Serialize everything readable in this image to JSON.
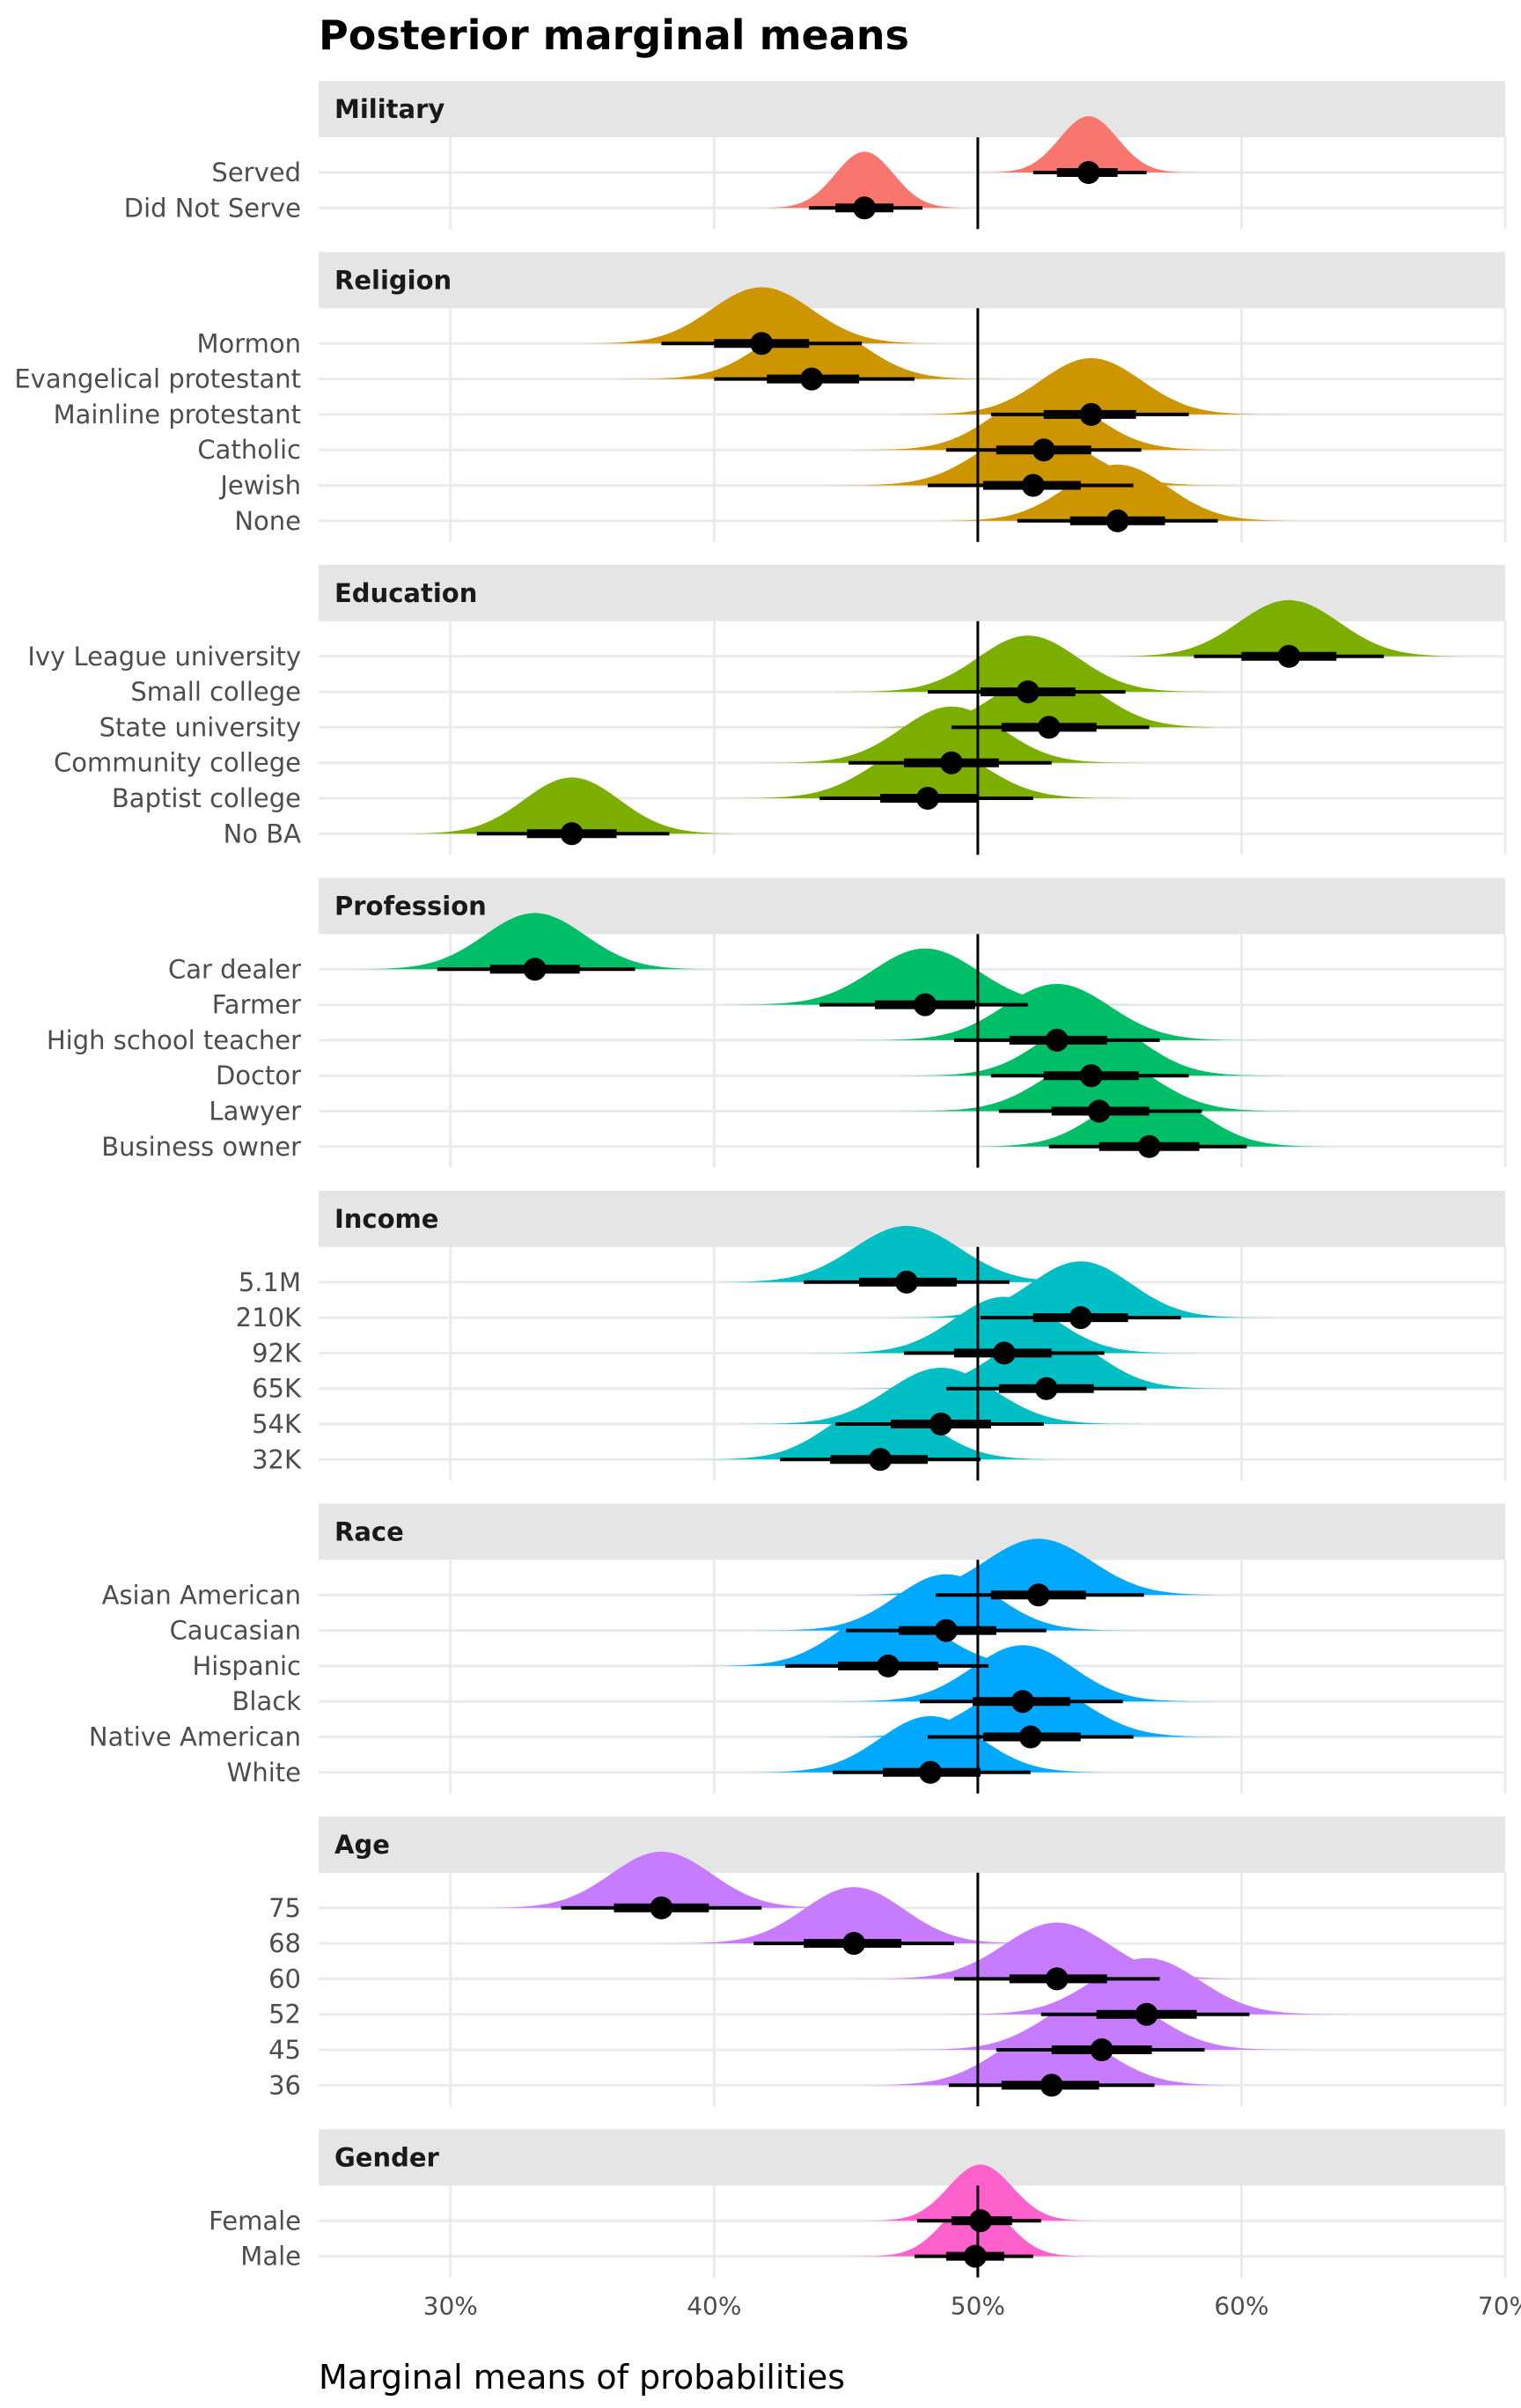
{
  "chart_data": {
    "type": "halfeye",
    "title": "Posterior marginal means",
    "xlabel": "Marginal means of probabilities",
    "ylabel": "",
    "xlim": [
      0.25,
      0.7
    ],
    "x_ticks": [
      0.3,
      0.4,
      0.5,
      0.6,
      0.7
    ],
    "x_tick_labels": [
      "30%",
      "40%",
      "50%",
      "60%",
      "70%"
    ],
    "reference_line": 0.5,
    "grid": true,
    "legend": "none",
    "facets": [
      {
        "name": "Military",
        "color": "#F8766D",
        "levels": [
          {
            "label": "Served",
            "median": 0.542,
            "q66": [
              0.53,
              0.553
            ],
            "q95": [
              0.521,
              0.564
            ],
            "sd": 0.011
          },
          {
            "label": "Did Not Serve",
            "median": 0.457,
            "q66": [
              0.446,
              0.468
            ],
            "q95": [
              0.436,
              0.479
            ],
            "sd": 0.011
          }
        ]
      },
      {
        "name": "Religion",
        "color": "#CD9600",
        "levels": [
          {
            "label": "Mormon",
            "median": 0.418,
            "q66": [
              0.4,
              0.436
            ],
            "q95": [
              0.38,
              0.456
            ],
            "sd": 0.019
          },
          {
            "label": "Evangelical protestant",
            "median": 0.437,
            "q66": [
              0.42,
              0.455
            ],
            "q95": [
              0.4,
              0.476
            ],
            "sd": 0.019
          },
          {
            "label": "Mainline protestant",
            "median": 0.543,
            "q66": [
              0.525,
              0.56
            ],
            "q95": [
              0.505,
              0.58
            ],
            "sd": 0.019
          },
          {
            "label": "Catholic",
            "median": 0.525,
            "q66": [
              0.507,
              0.543
            ],
            "q95": [
              0.488,
              0.562
            ],
            "sd": 0.019
          },
          {
            "label": "Jewish",
            "median": 0.521,
            "q66": [
              0.502,
              0.539
            ],
            "q95": [
              0.481,
              0.559
            ],
            "sd": 0.02
          },
          {
            "label": "None",
            "median": 0.553,
            "q66": [
              0.535,
              0.571
            ],
            "q95": [
              0.515,
              0.591
            ],
            "sd": 0.019
          }
        ]
      },
      {
        "name": "Education",
        "color": "#7CAE00",
        "levels": [
          {
            "label": "Ivy League university",
            "median": 0.618,
            "q66": [
              0.6,
              0.636
            ],
            "q95": [
              0.582,
              0.654
            ],
            "sd": 0.019
          },
          {
            "label": "Small college",
            "median": 0.519,
            "q66": [
              0.501,
              0.537
            ],
            "q95": [
              0.481,
              0.556
            ],
            "sd": 0.019
          },
          {
            "label": "State university",
            "median": 0.527,
            "q66": [
              0.509,
              0.545
            ],
            "q95": [
              0.49,
              0.565
            ],
            "sd": 0.019
          },
          {
            "label": "Community college",
            "median": 0.49,
            "q66": [
              0.472,
              0.508
            ],
            "q95": [
              0.451,
              0.528
            ],
            "sd": 0.019
          },
          {
            "label": "Baptist college",
            "median": 0.481,
            "q66": [
              0.463,
              0.5
            ],
            "q95": [
              0.44,
              0.521
            ],
            "sd": 0.02
          },
          {
            "label": "No BA",
            "median": 0.346,
            "q66": [
              0.329,
              0.363
            ],
            "q95": [
              0.31,
              0.383
            ],
            "sd": 0.018
          }
        ]
      },
      {
        "name": "Profession",
        "color": "#00BE67",
        "levels": [
          {
            "label": "Car dealer",
            "median": 0.332,
            "q66": [
              0.315,
              0.349
            ],
            "q95": [
              0.295,
              0.37
            ],
            "sd": 0.019
          },
          {
            "label": "Farmer",
            "median": 0.48,
            "q66": [
              0.461,
              0.499
            ],
            "q95": [
              0.44,
              0.519
            ],
            "sd": 0.02
          },
          {
            "label": "High school teacher",
            "median": 0.53,
            "q66": [
              0.512,
              0.549
            ],
            "q95": [
              0.491,
              0.569
            ],
            "sd": 0.02
          },
          {
            "label": "Doctor",
            "median": 0.543,
            "q66": [
              0.525,
              0.561
            ],
            "q95": [
              0.505,
              0.58
            ],
            "sd": 0.019
          },
          {
            "label": "Lawyer",
            "median": 0.546,
            "q66": [
              0.528,
              0.565
            ],
            "q95": [
              0.508,
              0.585
            ],
            "sd": 0.02
          },
          {
            "label": "Business owner",
            "median": 0.565,
            "q66": [
              0.546,
              0.584
            ],
            "q95": [
              0.527,
              0.602
            ],
            "sd": 0.019
          }
        ]
      },
      {
        "name": "Income",
        "color": "#00BFC4",
        "levels": [
          {
            "label": "5.1M",
            "median": 0.473,
            "q66": [
              0.455,
              0.492
            ],
            "q95": [
              0.434,
              0.512
            ],
            "sd": 0.02
          },
          {
            "label": "210K",
            "median": 0.539,
            "q66": [
              0.521,
              0.557
            ],
            "q95": [
              0.501,
              0.577
            ],
            "sd": 0.019
          },
          {
            "label": "92K",
            "median": 0.51,
            "q66": [
              0.491,
              0.528
            ],
            "q95": [
              0.472,
              0.548
            ],
            "sd": 0.019
          },
          {
            "label": "65K",
            "median": 0.526,
            "q66": [
              0.508,
              0.544
            ],
            "q95": [
              0.488,
              0.564
            ],
            "sd": 0.019
          },
          {
            "label": "54K",
            "median": 0.486,
            "q66": [
              0.467,
              0.505
            ],
            "q95": [
              0.446,
              0.525
            ],
            "sd": 0.02
          },
          {
            "label": "32K",
            "median": 0.463,
            "q66": [
              0.444,
              0.481
            ],
            "q95": [
              0.425,
              0.501
            ],
            "sd": 0.019
          }
        ]
      },
      {
        "name": "Race",
        "color": "#00A9FF",
        "levels": [
          {
            "label": "Asian American",
            "median": 0.523,
            "q66": [
              0.505,
              0.541
            ],
            "q95": [
              0.484,
              0.563
            ],
            "sd": 0.02
          },
          {
            "label": "Caucasian",
            "median": 0.488,
            "q66": [
              0.47,
              0.507
            ],
            "q95": [
              0.45,
              0.526
            ],
            "sd": 0.019
          },
          {
            "label": "Hispanic",
            "median": 0.466,
            "q66": [
              0.447,
              0.485
            ],
            "q95": [
              0.427,
              0.504
            ],
            "sd": 0.019
          },
          {
            "label": "Black",
            "median": 0.517,
            "q66": [
              0.498,
              0.535
            ],
            "q95": [
              0.478,
              0.555
            ],
            "sd": 0.019
          },
          {
            "label": "Native American",
            "median": 0.52,
            "q66": [
              0.502,
              0.539
            ],
            "q95": [
              0.481,
              0.559
            ],
            "sd": 0.02
          },
          {
            "label": "White",
            "median": 0.482,
            "q66": [
              0.464,
              0.501
            ],
            "q95": [
              0.445,
              0.52
            ],
            "sd": 0.019
          }
        ]
      },
      {
        "name": "Age",
        "color": "#C77CFF",
        "levels": [
          {
            "label": "75",
            "median": 0.38,
            "q66": [
              0.362,
              0.398
            ],
            "q95": [
              0.342,
              0.418
            ],
            "sd": 0.019
          },
          {
            "label": "68",
            "median": 0.453,
            "q66": [
              0.434,
              0.471
            ],
            "q95": [
              0.415,
              0.491
            ],
            "sd": 0.019
          },
          {
            "label": "60",
            "median": 0.53,
            "q66": [
              0.512,
              0.549
            ],
            "q95": [
              0.491,
              0.569
            ],
            "sd": 0.02
          },
          {
            "label": "52",
            "median": 0.564,
            "q66": [
              0.545,
              0.583
            ],
            "q95": [
              0.524,
              0.603
            ],
            "sd": 0.02
          },
          {
            "label": "45",
            "median": 0.547,
            "q66": [
              0.528,
              0.566
            ],
            "q95": [
              0.507,
              0.586
            ],
            "sd": 0.02
          },
          {
            "label": "36",
            "median": 0.528,
            "q66": [
              0.509,
              0.546
            ],
            "q95": [
              0.489,
              0.567
            ],
            "sd": 0.02
          }
        ]
      },
      {
        "name": "Gender",
        "color": "#FF61CC",
        "levels": [
          {
            "label": "Female",
            "median": 0.501,
            "q66": [
              0.49,
              0.513
            ],
            "q95": [
              0.477,
              0.524
            ],
            "sd": 0.012
          },
          {
            "label": "Male",
            "median": 0.499,
            "q66": [
              0.488,
              0.51
            ],
            "q95": [
              0.476,
              0.521
            ],
            "sd": 0.012
          }
        ]
      }
    ]
  }
}
